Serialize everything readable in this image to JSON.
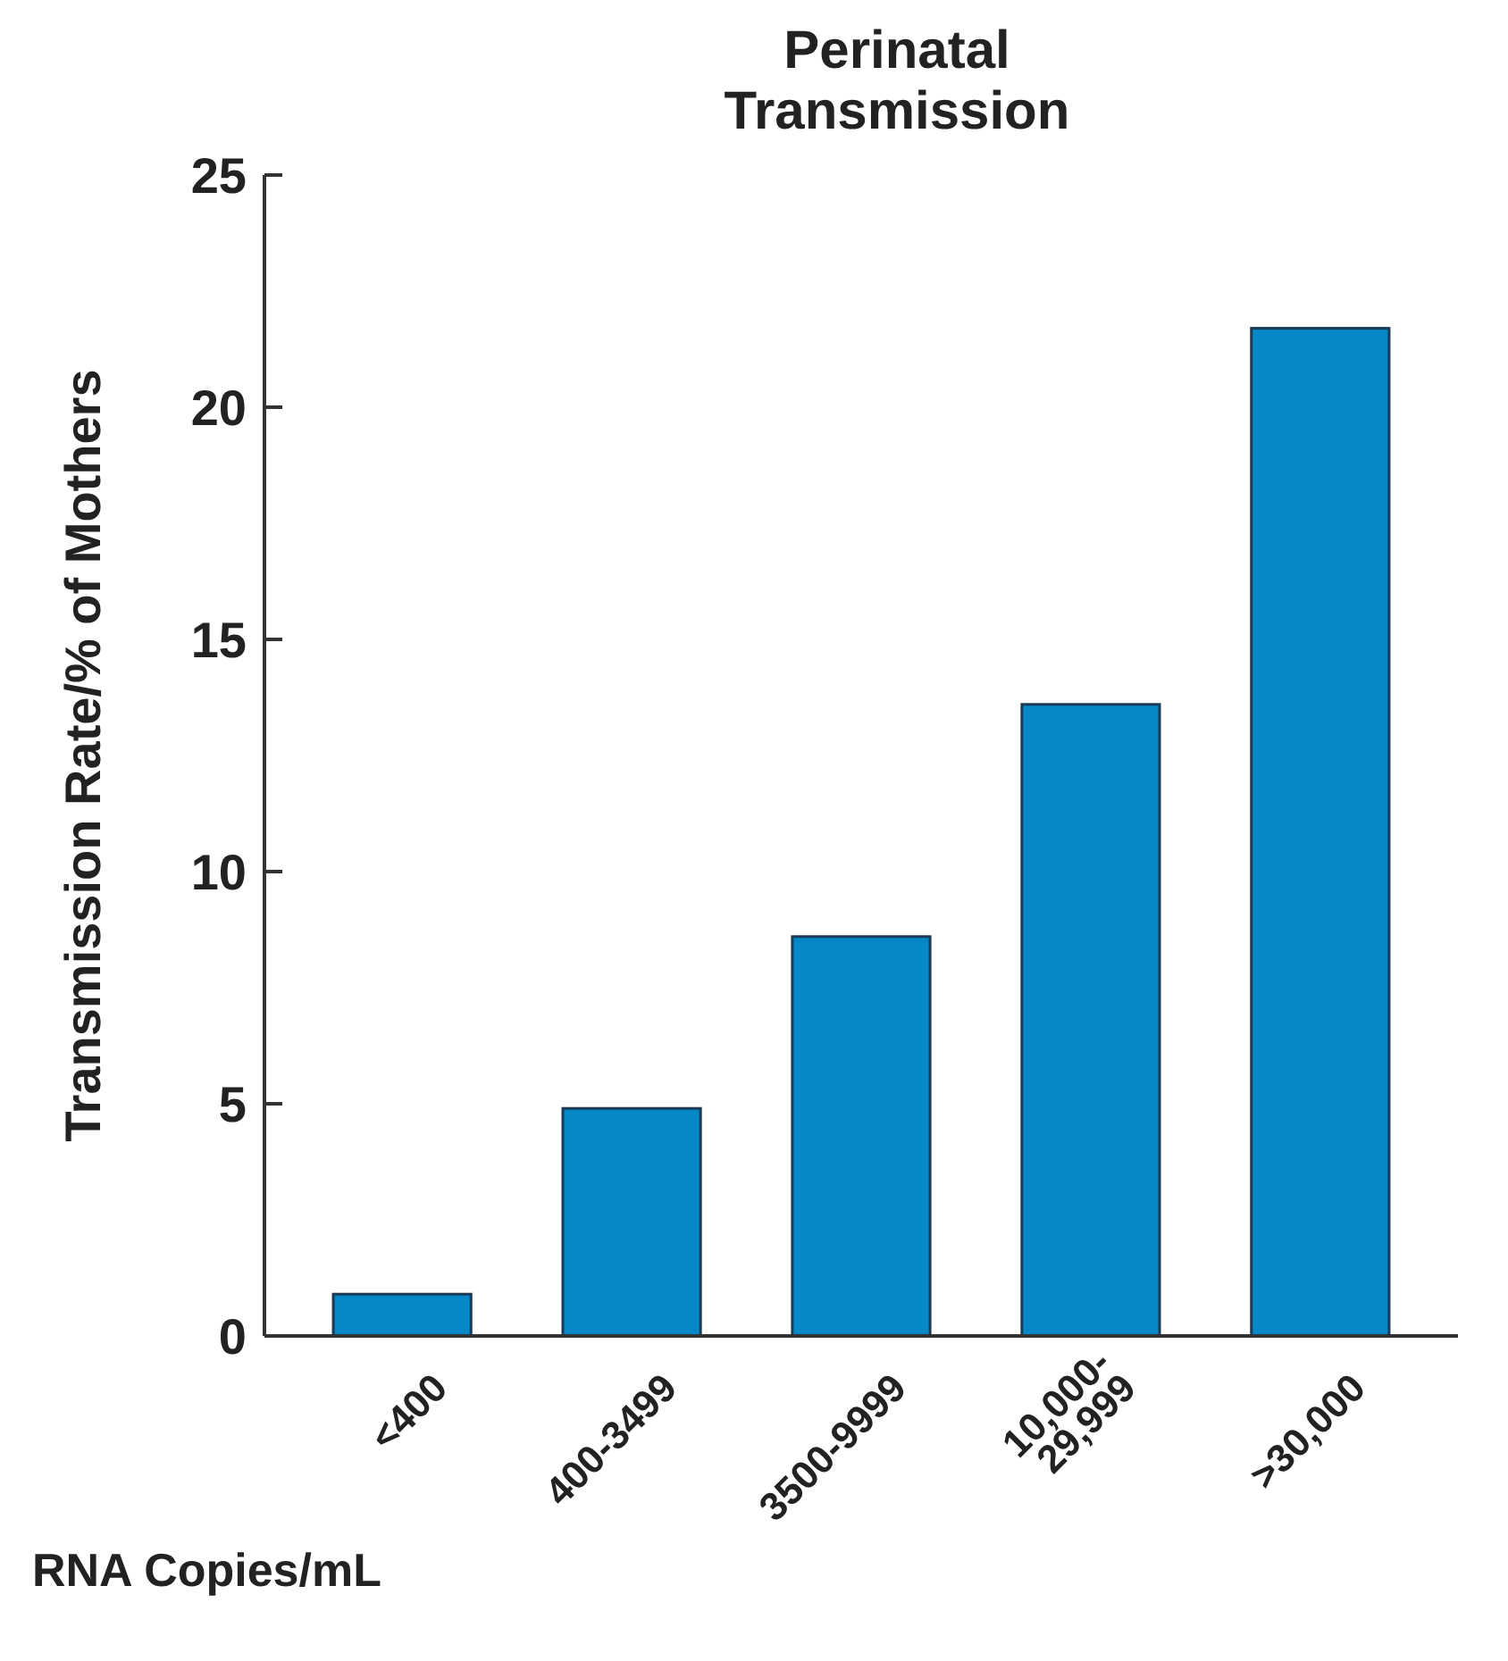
{
  "chart_data": {
    "type": "bar",
    "title": "Perinatal\nTransmission",
    "xlabel": "RNA Copies/mL",
    "ylabel": "Transmission Rate/% of Mothers",
    "categories": [
      "<400",
      "400-3499",
      "3500-9999",
      "10,000-\n29,999",
      ">30,000"
    ],
    "values": [
      0.9,
      4.9,
      8.6,
      13.6,
      21.7
    ],
    "color": "#0588c8",
    "ylim": [
      0,
      25
    ],
    "yticks": [
      0,
      5,
      10,
      15,
      20,
      25
    ],
    "grid": false
  }
}
